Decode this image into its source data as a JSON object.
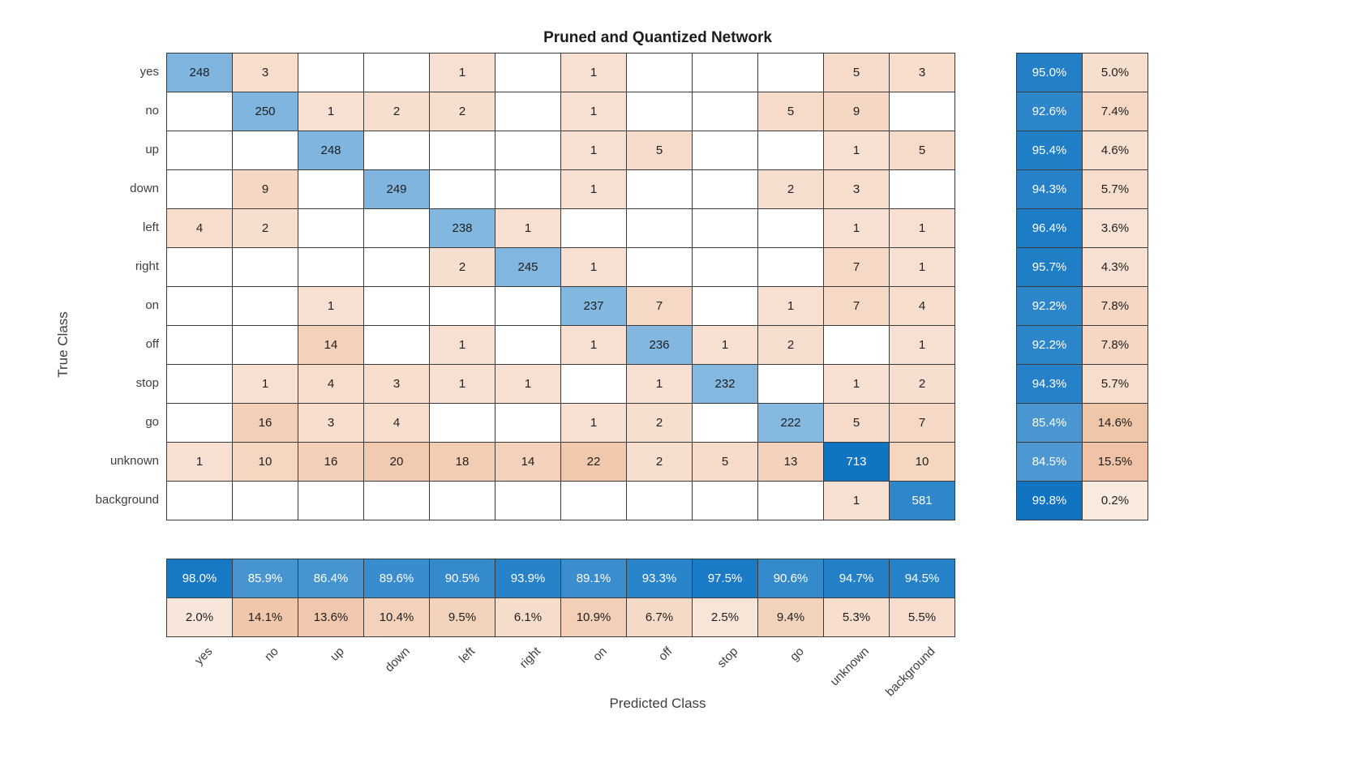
{
  "chart_data": {
    "type": "heatmap",
    "subtype": "confusion-matrix",
    "title": "Pruned and Quantized Network",
    "xlabel": "Predicted Class",
    "ylabel": "True Class",
    "classes": [
      "yes",
      "no",
      "up",
      "down",
      "left",
      "right",
      "on",
      "off",
      "stop",
      "go",
      "unknown",
      "background"
    ],
    "matrix": [
      [
        248,
        3,
        null,
        null,
        1,
        null,
        1,
        null,
        null,
        null,
        5,
        3
      ],
      [
        null,
        250,
        1,
        2,
        2,
        null,
        1,
        null,
        null,
        5,
        9,
        null
      ],
      [
        null,
        null,
        248,
        null,
        null,
        null,
        1,
        5,
        null,
        null,
        1,
        5
      ],
      [
        null,
        9,
        null,
        249,
        null,
        null,
        1,
        null,
        null,
        2,
        3,
        null
      ],
      [
        4,
        2,
        null,
        null,
        238,
        1,
        null,
        null,
        null,
        null,
        1,
        1
      ],
      [
        null,
        null,
        null,
        null,
        2,
        245,
        1,
        null,
        null,
        null,
        7,
        1
      ],
      [
        null,
        null,
        1,
        null,
        null,
        null,
        237,
        7,
        null,
        1,
        7,
        4
      ],
      [
        null,
        null,
        14,
        null,
        1,
        null,
        1,
        236,
        1,
        2,
        null,
        1
      ],
      [
        null,
        1,
        4,
        3,
        1,
        1,
        null,
        1,
        232,
        null,
        1,
        2
      ],
      [
        null,
        16,
        3,
        4,
        null,
        null,
        1,
        2,
        null,
        222,
        5,
        7
      ],
      [
        1,
        10,
        16,
        20,
        18,
        14,
        22,
        2,
        5,
        13,
        713,
        10
      ],
      [
        null,
        null,
        null,
        null,
        null,
        null,
        null,
        null,
        null,
        null,
        1,
        581
      ]
    ],
    "row_summary": {
      "correct_pct": [
        95.0,
        92.6,
        95.4,
        94.3,
        96.4,
        95.7,
        92.2,
        92.2,
        94.3,
        85.4,
        84.5,
        99.8
      ],
      "incorrect_pct": [
        5.0,
        7.4,
        4.6,
        5.7,
        3.6,
        4.3,
        7.8,
        7.8,
        5.7,
        14.6,
        15.5,
        0.2
      ]
    },
    "col_summary": {
      "correct_pct": [
        98.0,
        85.9,
        86.4,
        89.6,
        90.5,
        93.9,
        89.1,
        93.3,
        97.5,
        90.6,
        94.7,
        94.5
      ],
      "incorrect_pct": [
        2.0,
        14.1,
        13.6,
        10.4,
        9.5,
        6.1,
        10.9,
        6.7,
        2.5,
        9.4,
        5.3,
        5.5
      ]
    },
    "colors": {
      "diagonal_blue": "#0f74c2",
      "offdiagonal_orange": "#d96a20",
      "cell_border": "#3a3a3a",
      "text_dark": "#1f1f1f",
      "text_light": "#ffffff",
      "background": "#ffffff"
    },
    "layout": {
      "grid": "on",
      "row_summary_position": "right",
      "col_summary_position": "bottom",
      "xticklabel_rotation_deg": -45
    }
  }
}
